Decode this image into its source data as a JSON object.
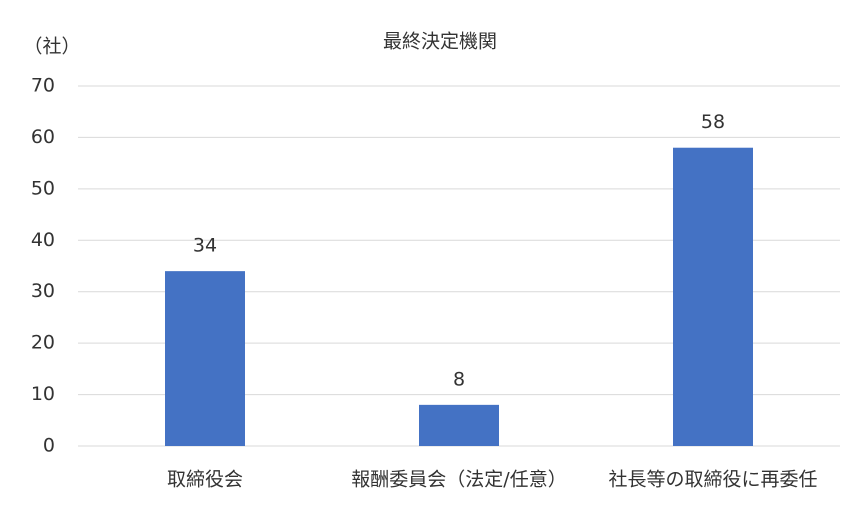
{
  "chart_data": {
    "type": "bar",
    "title": "最終決定機関",
    "y_label": "（社）",
    "categories": [
      "取締役会",
      "報酬委員会（法定/任意）",
      "社長等の取締役に再委任"
    ],
    "values": [
      34,
      8,
      58
    ],
    "color": "#4472c4",
    "ylim": [
      0,
      70
    ],
    "yticks": [
      0,
      10,
      20,
      30,
      40,
      50,
      60,
      70
    ],
    "grid": true
  }
}
